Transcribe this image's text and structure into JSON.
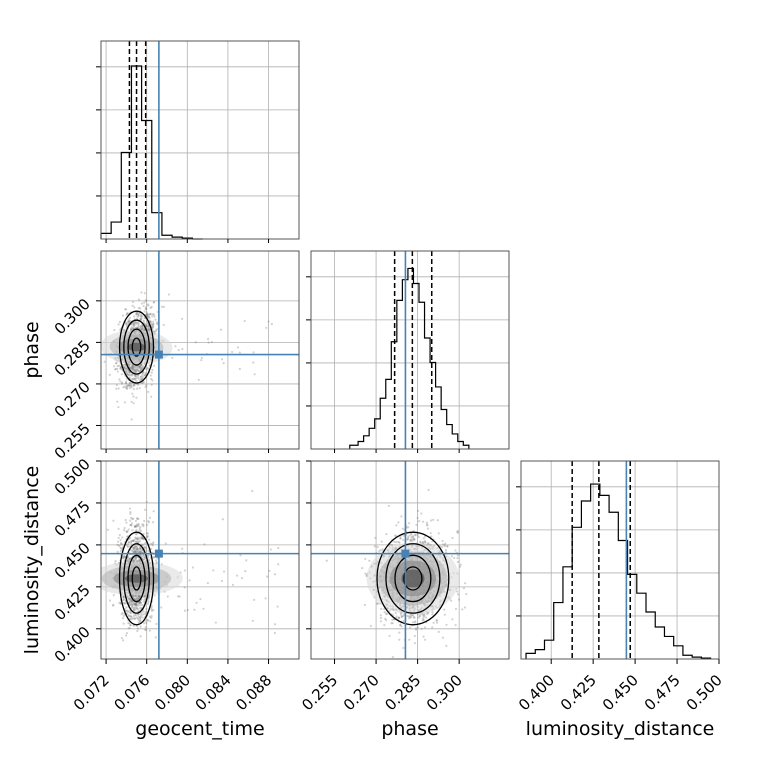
{
  "chart_data": {
    "type": "corner",
    "parameters": [
      "geocent_time",
      "phase",
      "luminosity_distance"
    ],
    "truth": {
      "geocent_time": 0.0772,
      "phase": 0.2806,
      "luminosity_distance": 0.4448
    },
    "quantiles": {
      "geocent_time": [
        0.0743,
        0.075,
        0.0759
      ],
      "phase": [
        0.2767,
        0.2831,
        0.2901
      ],
      "luminosity_distance": [
        0.4125,
        0.4284,
        0.4471
      ]
    },
    "axis_ranges": {
      "geocent_time": [
        0.0715,
        0.091
      ],
      "phase": [
        0.2465,
        0.318
      ],
      "luminosity_distance": [
        0.382,
        0.5
      ]
    },
    "ticks": {
      "geocent_time": {
        "values": [
          0.072,
          0.076,
          0.08,
          0.084,
          0.088
        ],
        "labels": [
          "0.072",
          "0.076",
          "0.080",
          "0.084",
          "0.088"
        ]
      },
      "phase": {
        "values": [
          0.255,
          0.27,
          0.285,
          0.3
        ],
        "labels": [
          "0.255",
          "0.270",
          "0.285",
          "0.300"
        ]
      },
      "luminosity_distance": {
        "values": [
          0.4,
          0.425,
          0.45,
          0.475,
          0.5
        ],
        "labels": [
          "0.400",
          "0.425",
          "0.450",
          "0.475",
          "0.500"
        ]
      }
    },
    "histograms": {
      "geocent_time": {
        "edges": [
          0.0715,
          0.0725,
          0.0735,
          0.0745,
          0.0755,
          0.0765,
          0.0775,
          0.0785,
          0.0795,
          0.0805,
          0.0815
        ],
        "counts": [
          0.03,
          0.09,
          0.46,
          0.92,
          0.63,
          0.14,
          0.02,
          0.01,
          0.005,
          0.0
        ]
      },
      "phase": {
        "edges": [
          0.2605,
          0.2635,
          0.2655,
          0.2675,
          0.2695,
          0.2715,
          0.2735,
          0.2755,
          0.2775,
          0.2795,
          0.2815,
          0.2835,
          0.2855,
          0.2875,
          0.2895,
          0.2915,
          0.2935,
          0.2955,
          0.2975,
          0.2995,
          0.3015,
          0.3035
        ],
        "counts": [
          0.02,
          0.04,
          0.07,
          0.11,
          0.16,
          0.27,
          0.37,
          0.57,
          0.79,
          0.9,
          0.96,
          0.88,
          0.78,
          0.59,
          0.46,
          0.33,
          0.21,
          0.13,
          0.08,
          0.04,
          0.02
        ]
      },
      "luminosity_distance": {
        "edges": [
          0.385,
          0.3905,
          0.396,
          0.4015,
          0.407,
          0.4125,
          0.418,
          0.4235,
          0.429,
          0.4345,
          0.44,
          0.4455,
          0.451,
          0.4565,
          0.462,
          0.4675,
          0.473,
          0.4785,
          0.484,
          0.4895,
          0.495
        ],
        "counts": [
          0.03,
          0.05,
          0.1,
          0.3,
          0.49,
          0.7,
          0.84,
          0.93,
          0.87,
          0.78,
          0.63,
          0.45,
          0.35,
          0.25,
          0.17,
          0.12,
          0.07,
          0.02,
          0.01,
          0.005
        ]
      }
    },
    "correlations": [
      {
        "x": "geocent_time",
        "y": "phase",
        "cov": [
          [
            7e-07,
            1.4e-06
          ],
          [
            1.4e-06,
            4.2e-05
          ]
        ]
      },
      {
        "x": "geocent_time",
        "y": "luminosity_distance",
        "cov": [
          [
            7e-07,
            0.0
          ],
          [
            0.0,
            0.00019
          ]
        ]
      },
      {
        "x": "phase",
        "y": "luminosity_distance",
        "cov": [
          [
            4.2e-05,
            0.0
          ],
          [
            0.0,
            0.00019
          ]
        ]
      }
    ],
    "means": {
      "geocent_time": 0.075,
      "phase": 0.2833,
      "luminosity_distance": 0.43
    },
    "contour_levels_sigma": [
      0.5,
      1.0,
      1.5,
      2.0
    ],
    "colors": {
      "truth": "#4682b4",
      "hist": "#000000",
      "quantile": "#000000",
      "grid": "#b0b0b0",
      "points": "#7f7f7f"
    },
    "grid": true
  }
}
